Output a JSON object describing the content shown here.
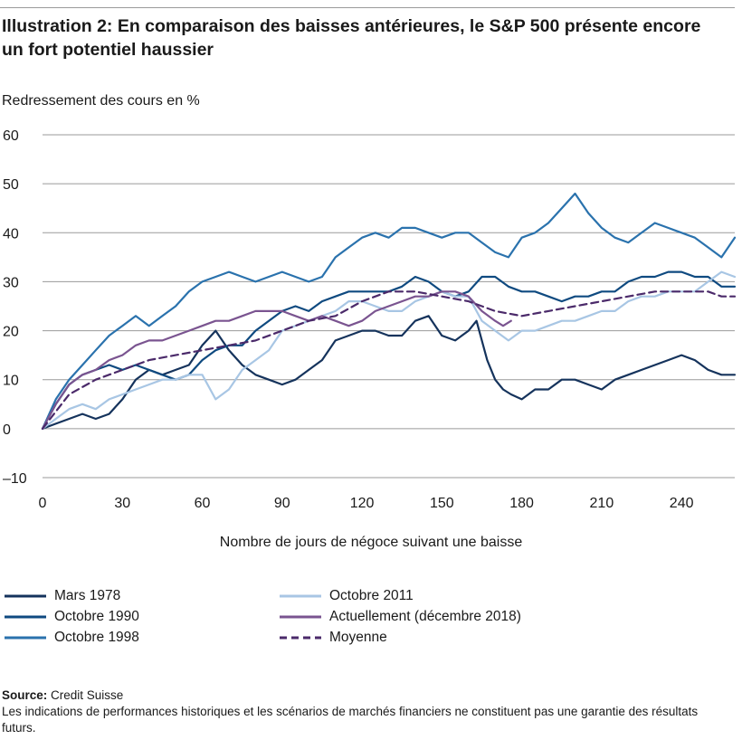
{
  "title": "Illustration 2: En comparaison des baisses antérieures, le S&P 500 présente encore un fort potentiel haussier",
  "footer": {
    "source_label": "Source:",
    "source_value": "Credit Suisse",
    "disclaimer": "Les indications de performances historiques et les scénarios de marchés financiers ne constituent pas une garantie des résultats futurs."
  },
  "chart_data": {
    "type": "line",
    "title": "Illustration 2: En comparaison des baisses antérieures, le S&P 500 présente encore un fort potentiel haussier",
    "ylabel": "Redressement des cours en %",
    "xlabel": "Nombre de jours de négoce suivant une baisse",
    "xlim": [
      0,
      260
    ],
    "ylim": [
      -10,
      60
    ],
    "x_ticks": [
      "0",
      "30",
      "60",
      "90",
      "120",
      "150",
      "180",
      "210",
      "240"
    ],
    "y_ticks": [
      "60",
      "50",
      "40",
      "30",
      "20",
      "10",
      "0",
      "–10"
    ],
    "grid": "horizontal",
    "legend_position": "bottom",
    "series": [
      {
        "name": "Mars 1978",
        "color": "#15335c",
        "dash": "solid",
        "points": [
          [
            0,
            0
          ],
          [
            5,
            1
          ],
          [
            10,
            2
          ],
          [
            15,
            3
          ],
          [
            20,
            2
          ],
          [
            25,
            3
          ],
          [
            30,
            6
          ],
          [
            35,
            10
          ],
          [
            40,
            12
          ],
          [
            45,
            11
          ],
          [
            50,
            12
          ],
          [
            55,
            13
          ],
          [
            60,
            17
          ],
          [
            65,
            20
          ],
          [
            70,
            16
          ],
          [
            75,
            13
          ],
          [
            80,
            11
          ],
          [
            85,
            10
          ],
          [
            90,
            9
          ],
          [
            95,
            10
          ],
          [
            100,
            12
          ],
          [
            105,
            14
          ],
          [
            110,
            18
          ],
          [
            115,
            19
          ],
          [
            120,
            20
          ],
          [
            125,
            20
          ],
          [
            130,
            19
          ],
          [
            135,
            19
          ],
          [
            140,
            22
          ],
          [
            145,
            23
          ],
          [
            150,
            19
          ],
          [
            155,
            18
          ],
          [
            160,
            20
          ],
          [
            163,
            22
          ],
          [
            167,
            14
          ],
          [
            170,
            10
          ],
          [
            173,
            8
          ],
          [
            176,
            7
          ],
          [
            180,
            6
          ],
          [
            185,
            8
          ],
          [
            190,
            8
          ],
          [
            195,
            10
          ],
          [
            200,
            10
          ],
          [
            205,
            9
          ],
          [
            210,
            8
          ],
          [
            215,
            10
          ],
          [
            220,
            11
          ],
          [
            225,
            12
          ],
          [
            230,
            13
          ],
          [
            235,
            14
          ],
          [
            240,
            15
          ],
          [
            245,
            14
          ],
          [
            250,
            12
          ],
          [
            255,
            11
          ],
          [
            260,
            11
          ]
        ]
      },
      {
        "name": "Octobre 1990",
        "color": "#0f4a80",
        "dash": "solid",
        "points": [
          [
            0,
            0
          ],
          [
            5,
            5
          ],
          [
            10,
            9
          ],
          [
            15,
            11
          ],
          [
            20,
            12
          ],
          [
            25,
            13
          ],
          [
            30,
            12
          ],
          [
            35,
            13
          ],
          [
            40,
            12
          ],
          [
            45,
            11
          ],
          [
            50,
            10
          ],
          [
            55,
            11
          ],
          [
            60,
            14
          ],
          [
            65,
            16
          ],
          [
            70,
            17
          ],
          [
            75,
            17
          ],
          [
            80,
            20
          ],
          [
            85,
            22
          ],
          [
            90,
            24
          ],
          [
            95,
            25
          ],
          [
            100,
            24
          ],
          [
            105,
            26
          ],
          [
            110,
            27
          ],
          [
            115,
            28
          ],
          [
            120,
            28
          ],
          [
            125,
            28
          ],
          [
            130,
            28
          ],
          [
            135,
            29
          ],
          [
            140,
            31
          ],
          [
            145,
            30
          ],
          [
            150,
            28
          ],
          [
            155,
            27
          ],
          [
            160,
            28
          ],
          [
            165,
            31
          ],
          [
            170,
            31
          ],
          [
            175,
            29
          ],
          [
            180,
            28
          ],
          [
            185,
            28
          ],
          [
            190,
            27
          ],
          [
            195,
            26
          ],
          [
            200,
            27
          ],
          [
            205,
            27
          ],
          [
            210,
            28
          ],
          [
            215,
            28
          ],
          [
            220,
            30
          ],
          [
            225,
            31
          ],
          [
            230,
            31
          ],
          [
            235,
            32
          ],
          [
            240,
            32
          ],
          [
            245,
            31
          ],
          [
            250,
            31
          ],
          [
            255,
            29
          ],
          [
            260,
            29
          ]
        ]
      },
      {
        "name": "Octobre 1998",
        "color": "#2a72ad",
        "dash": "solid",
        "points": [
          [
            0,
            0
          ],
          [
            5,
            6
          ],
          [
            10,
            10
          ],
          [
            15,
            13
          ],
          [
            20,
            16
          ],
          [
            25,
            19
          ],
          [
            30,
            21
          ],
          [
            35,
            23
          ],
          [
            40,
            21
          ],
          [
            45,
            23
          ],
          [
            50,
            25
          ],
          [
            55,
            28
          ],
          [
            60,
            30
          ],
          [
            65,
            31
          ],
          [
            70,
            32
          ],
          [
            75,
            31
          ],
          [
            80,
            30
          ],
          [
            85,
            31
          ],
          [
            90,
            32
          ],
          [
            95,
            31
          ],
          [
            100,
            30
          ],
          [
            105,
            31
          ],
          [
            110,
            35
          ],
          [
            115,
            37
          ],
          [
            120,
            39
          ],
          [
            125,
            40
          ],
          [
            130,
            39
          ],
          [
            135,
            41
          ],
          [
            140,
            41
          ],
          [
            145,
            40
          ],
          [
            150,
            39
          ],
          [
            155,
            40
          ],
          [
            160,
            40
          ],
          [
            165,
            38
          ],
          [
            170,
            36
          ],
          [
            175,
            35
          ],
          [
            180,
            39
          ],
          [
            185,
            40
          ],
          [
            190,
            42
          ],
          [
            195,
            45
          ],
          [
            200,
            48
          ],
          [
            205,
            44
          ],
          [
            210,
            41
          ],
          [
            215,
            39
          ],
          [
            220,
            38
          ],
          [
            225,
            40
          ],
          [
            230,
            42
          ],
          [
            235,
            41
          ],
          [
            240,
            40
          ],
          [
            245,
            39
          ],
          [
            250,
            37
          ],
          [
            255,
            35
          ],
          [
            260,
            39
          ]
        ]
      },
      {
        "name": "Octobre 2011",
        "color": "#a8c6e4",
        "dash": "solid",
        "points": [
          [
            0,
            0
          ],
          [
            5,
            2
          ],
          [
            10,
            4
          ],
          [
            15,
            5
          ],
          [
            20,
            4
          ],
          [
            25,
            6
          ],
          [
            30,
            7
          ],
          [
            35,
            8
          ],
          [
            40,
            9
          ],
          [
            45,
            10
          ],
          [
            50,
            10
          ],
          [
            55,
            11
          ],
          [
            60,
            11
          ],
          [
            65,
            6
          ],
          [
            70,
            8
          ],
          [
            75,
            12
          ],
          [
            80,
            14
          ],
          [
            85,
            16
          ],
          [
            90,
            20
          ],
          [
            95,
            21
          ],
          [
            100,
            22
          ],
          [
            105,
            23
          ],
          [
            110,
            24
          ],
          [
            115,
            26
          ],
          [
            120,
            26
          ],
          [
            125,
            25
          ],
          [
            130,
            24
          ],
          [
            135,
            24
          ],
          [
            140,
            26
          ],
          [
            145,
            27
          ],
          [
            150,
            28
          ],
          [
            155,
            27
          ],
          [
            160,
            27
          ],
          [
            165,
            22
          ],
          [
            170,
            20
          ],
          [
            175,
            18
          ],
          [
            180,
            20
          ],
          [
            185,
            20
          ],
          [
            190,
            21
          ],
          [
            195,
            22
          ],
          [
            200,
            22
          ],
          [
            205,
            23
          ],
          [
            210,
            24
          ],
          [
            215,
            24
          ],
          [
            220,
            26
          ],
          [
            225,
            27
          ],
          [
            230,
            27
          ],
          [
            235,
            28
          ],
          [
            240,
            28
          ],
          [
            245,
            28
          ],
          [
            250,
            30
          ],
          [
            255,
            32
          ],
          [
            260,
            31
          ]
        ]
      },
      {
        "name": "Actuellement (décembre 2018)",
        "color": "#7a5490",
        "dash": "solid",
        "points": [
          [
            0,
            0
          ],
          [
            5,
            5
          ],
          [
            10,
            9
          ],
          [
            15,
            11
          ],
          [
            20,
            12
          ],
          [
            25,
            14
          ],
          [
            30,
            15
          ],
          [
            35,
            17
          ],
          [
            40,
            18
          ],
          [
            45,
            18
          ],
          [
            50,
            19
          ],
          [
            55,
            20
          ],
          [
            60,
            21
          ],
          [
            65,
            22
          ],
          [
            70,
            22
          ],
          [
            75,
            23
          ],
          [
            80,
            24
          ],
          [
            85,
            24
          ],
          [
            90,
            24
          ],
          [
            95,
            23
          ],
          [
            100,
            22
          ],
          [
            105,
            23
          ],
          [
            110,
            22
          ],
          [
            115,
            21
          ],
          [
            120,
            22
          ],
          [
            125,
            24
          ],
          [
            130,
            25
          ],
          [
            135,
            26
          ],
          [
            140,
            27
          ],
          [
            145,
            27
          ],
          [
            150,
            28
          ],
          [
            155,
            28
          ],
          [
            160,
            27
          ],
          [
            165,
            24
          ],
          [
            170,
            22
          ],
          [
            173,
            21
          ],
          [
            176,
            22
          ]
        ]
      },
      {
        "name": "Moyenne",
        "color": "#4b2a6a",
        "dash": "dashed",
        "points": [
          [
            0,
            0
          ],
          [
            10,
            7
          ],
          [
            20,
            10
          ],
          [
            30,
            12
          ],
          [
            40,
            14
          ],
          [
            50,
            15
          ],
          [
            60,
            16
          ],
          [
            70,
            17
          ],
          [
            80,
            18
          ],
          [
            90,
            20
          ],
          [
            100,
            22
          ],
          [
            110,
            23
          ],
          [
            120,
            26
          ],
          [
            130,
            28
          ],
          [
            140,
            28
          ],
          [
            150,
            27
          ],
          [
            160,
            26
          ],
          [
            170,
            24
          ],
          [
            180,
            23
          ],
          [
            190,
            24
          ],
          [
            200,
            25
          ],
          [
            210,
            26
          ],
          [
            220,
            27
          ],
          [
            230,
            28
          ],
          [
            240,
            28
          ],
          [
            250,
            28
          ],
          [
            255,
            27
          ],
          [
            260,
            27
          ]
        ]
      }
    ]
  }
}
